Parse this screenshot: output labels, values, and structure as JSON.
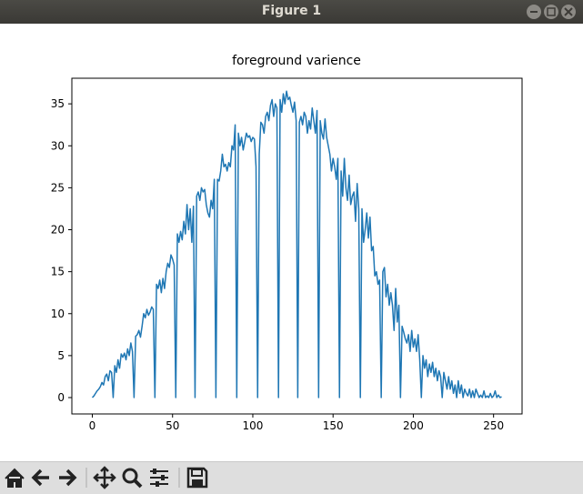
{
  "window": {
    "title": "Figure 1"
  },
  "chart_data": {
    "type": "line",
    "title": "foreground varience",
    "x": [
      0,
      1,
      2,
      3,
      4,
      5,
      6,
      7,
      8,
      9,
      10,
      11,
      12,
      13,
      14,
      15,
      16,
      17,
      18,
      19,
      20,
      21,
      22,
      23,
      24,
      25,
      26,
      27,
      28,
      29,
      30,
      31,
      32,
      33,
      34,
      35,
      36,
      37,
      38,
      39,
      40,
      41,
      42,
      43,
      44,
      45,
      46,
      47,
      48,
      49,
      50,
      51,
      52,
      53,
      54,
      55,
      56,
      57,
      58,
      59,
      60,
      61,
      62,
      63,
      64,
      65,
      66,
      67,
      68,
      69,
      70,
      71,
      72,
      73,
      74,
      75,
      76,
      77,
      78,
      79,
      80,
      81,
      82,
      83,
      84,
      85,
      86,
      87,
      88,
      89,
      90,
      91,
      92,
      93,
      94,
      95,
      96,
      97,
      98,
      99,
      100,
      101,
      102,
      103,
      104,
      105,
      106,
      107,
      108,
      109,
      110,
      111,
      112,
      113,
      114,
      115,
      116,
      117,
      118,
      119,
      120,
      121,
      122,
      123,
      124,
      125,
      126,
      127,
      128,
      129,
      130,
      131,
      132,
      133,
      134,
      135,
      136,
      137,
      138,
      139,
      140,
      141,
      142,
      143,
      144,
      145,
      146,
      147,
      148,
      149,
      150,
      151,
      152,
      153,
      154,
      155,
      156,
      157,
      158,
      159,
      160,
      161,
      162,
      163,
      164,
      165,
      166,
      167,
      168,
      169,
      170,
      171,
      172,
      173,
      174,
      175,
      176,
      177,
      178,
      179,
      180,
      181,
      182,
      183,
      184,
      185,
      186,
      187,
      188,
      189,
      190,
      191,
      192,
      193,
      194,
      195,
      196,
      197,
      198,
      199,
      200,
      201,
      202,
      203,
      204,
      205,
      206,
      207,
      208,
      209,
      210,
      211,
      212,
      213,
      214,
      215,
      216,
      217,
      218,
      219,
      220,
      221,
      222,
      223,
      224,
      225,
      226,
      227,
      228,
      229,
      230,
      231,
      232,
      233,
      234,
      235,
      236,
      237,
      238,
      239,
      240,
      241,
      242,
      243,
      244,
      245,
      246,
      247,
      248,
      249,
      250,
      251,
      252,
      253,
      254,
      255
    ],
    "series": [
      {
        "color": "#1f77b4",
        "values": [
          0,
          0.2,
          0.5,
          0.8,
          1,
          1.3,
          1.8,
          1.5,
          2.5,
          2.8,
          2,
          3.2,
          3,
          0,
          3.8,
          3,
          4.5,
          3.5,
          5.2,
          4.8,
          5.3,
          4.5,
          5.8,
          5,
          6.5,
          5.5,
          0,
          7.3,
          7.5,
          8,
          7.2,
          8.5,
          10,
          9.5,
          10.5,
          9.8,
          10.2,
          10.8,
          10.5,
          0,
          13.5,
          13,
          14,
          12.5,
          14.2,
          13,
          15,
          16,
          15.5,
          17,
          16.5,
          15.8,
          0,
          19.5,
          18.5,
          19.8,
          18.8,
          21,
          19.5,
          23,
          20,
          22.5,
          18.5,
          22.8,
          0,
          24,
          24.5,
          23.5,
          25,
          24.5,
          24.8,
          23,
          22,
          21.5,
          23.5,
          22.5,
          26,
          0,
          26,
          25.8,
          27,
          29,
          27.5,
          27.8,
          27,
          28,
          27.5,
          30,
          29.5,
          32.5,
          0,
          31.5,
          30,
          31,
          29.5,
          30.5,
          31.5,
          31,
          31.2,
          30.5,
          31,
          30.8,
          27.5,
          0,
          29,
          32.8,
          32.5,
          31.5,
          33.5,
          34,
          33,
          34.8,
          35.5,
          33.5,
          35,
          34.5,
          0,
          35.5,
          34,
          36.2,
          35,
          36.5,
          35.5,
          35.8,
          34.8,
          34,
          35.2,
          33,
          0,
          32.8,
          33.5,
          32.5,
          34,
          33.5,
          31.5,
          33,
          32,
          34.5,
          33,
          31.5,
          34.2,
          0,
          33,
          31.5,
          30.8,
          33.2,
          31,
          30,
          29,
          27,
          28.5,
          27.5,
          26,
          28.5,
          0,
          27,
          24,
          28.5,
          25,
          23.5,
          26.5,
          23,
          24,
          24.5,
          21,
          25.5,
          22.5,
          0,
          22.5,
          18.5,
          20,
          22,
          19,
          21.5,
          17.5,
          18,
          14.5,
          15,
          13.5,
          14,
          0,
          15,
          15.5,
          12,
          13.5,
          11,
          12.5,
          11,
          8,
          13,
          9,
          11,
          0,
          8.5,
          7.8,
          7,
          6.5,
          7.5,
          5.5,
          8,
          6,
          7,
          5.5,
          7.5,
          4.5,
          0,
          5,
          3.5,
          4.5,
          2.5,
          4,
          3,
          4.2,
          2.5,
          3.5,
          2,
          3.2,
          2.5,
          0,
          3,
          2,
          1,
          2.5,
          1,
          2,
          0.5,
          1.5,
          0,
          2,
          0.5,
          1.5,
          0,
          1,
          0.5,
          0.2,
          1,
          0,
          0.8,
          0,
          1,
          0.5,
          0,
          0.3,
          0,
          0.8,
          0,
          0.2,
          0,
          0.5,
          0,
          0.2,
          0.8,
          0,
          0.3,
          0,
          0.1
        ]
      }
    ],
    "xlim": [
      -12.75,
      267.75
    ],
    "xticks": [
      0,
      50,
      100,
      150,
      200,
      250
    ],
    "ylim": [
      -1.95,
      38.05
    ],
    "yticks": [
      0,
      5,
      10,
      15,
      20,
      25,
      30,
      35
    ]
  }
}
